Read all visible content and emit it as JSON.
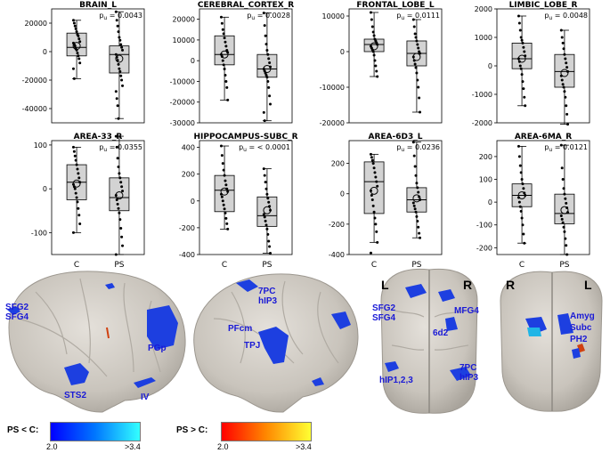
{
  "chart_data": [
    {
      "type": "box",
      "title": "BRAIN_L",
      "pvalue": "0.0043",
      "ylim": [
        -50000,
        30000
      ],
      "ticks": [
        20000,
        0,
        -20000,
        -40000
      ],
      "groups": [
        {
          "name": "C",
          "median": 3000,
          "q1": -3000,
          "q3": 13000,
          "whisker_low": -19000,
          "whisker_high": 22000,
          "mean": 4000,
          "points": [
            22000,
            20000,
            18000,
            16000,
            14000,
            12000,
            11000,
            9000,
            7000,
            6000,
            5000,
            4000,
            2000,
            1000,
            -1000,
            -3000,
            -5000,
            -8000,
            -12000,
            -19000
          ]
        },
        {
          "name": "PS",
          "median": -2000,
          "q1": -15000,
          "q3": 4000,
          "whisker_low": -47000,
          "whisker_high": 28000,
          "mean": -5000,
          "points": [
            28000,
            22000,
            18000,
            14000,
            10000,
            8000,
            5000,
            3000,
            1000,
            -2000,
            -4000,
            -6000,
            -9000,
            -12000,
            -14000,
            -17000,
            -20000,
            -24000,
            -28000,
            -33000,
            -38000,
            -47000
          ]
        }
      ]
    },
    {
      "type": "box",
      "title": "CEREBRAL_CORTEX_R",
      "pvalue": "0.0028",
      "ylim": [
        -30000,
        25000
      ],
      "ticks": [
        20000,
        10000,
        0,
        -10000,
        -20000,
        -30000
      ],
      "groups": [
        {
          "name": "C",
          "median": 3000,
          "q1": -2000,
          "q3": 12000,
          "whisker_low": -19000,
          "whisker_high": 21000,
          "mean": 3000,
          "points": [
            21000,
            18000,
            15000,
            13000,
            11000,
            9000,
            7000,
            5000,
            4000,
            3000,
            2000,
            0,
            -2000,
            -4000,
            -7000,
            -10000,
            -13000,
            -19000
          ]
        },
        {
          "name": "PS",
          "median": -4000,
          "q1": -8000,
          "q3": 3000,
          "whisker_low": -29000,
          "whisker_high": 23000,
          "mean": -4000,
          "points": [
            23000,
            17000,
            12000,
            8000,
            5000,
            3000,
            1000,
            -1000,
            -3000,
            -4000,
            -5000,
            -6000,
            -7000,
            -8000,
            -10000,
            -13000,
            -17000,
            -21000,
            -25000,
            -29000
          ]
        }
      ]
    },
    {
      "type": "box",
      "title": "FRONTAL_LOBE_L",
      "pvalue": "0.0111",
      "ylim": [
        -20000,
        12000
      ],
      "ticks": [
        10000,
        0,
        -10000,
        -20000
      ],
      "groups": [
        {
          "name": "C",
          "median": 2000,
          "q1": 0,
          "q3": 3500,
          "whisker_low": -7000,
          "whisker_high": 11000,
          "mean": 1500,
          "points": [
            11000,
            9000,
            7000,
            5500,
            4500,
            3500,
            3000,
            2500,
            2000,
            1500,
            1000,
            500,
            0,
            -1000,
            -2500,
            -4000,
            -5500,
            -7000
          ]
        },
        {
          "name": "PS",
          "median": -500,
          "q1": -4000,
          "q3": 3000,
          "whisker_low": -17000,
          "whisker_high": 9000,
          "mean": -1500,
          "points": [
            9000,
            7000,
            5000,
            4000,
            3000,
            2000,
            1000,
            0,
            -500,
            -1500,
            -2500,
            -3500,
            -4500,
            -6000,
            -8000,
            -10000,
            -13000,
            -17000
          ]
        }
      ]
    },
    {
      "type": "box",
      "title": "LIMBIC_LOBE_R",
      "pvalue": "0.0048",
      "ylim": [
        -2000,
        2000
      ],
      "ticks": [
        2000,
        1000,
        0,
        -1000,
        -2000
      ],
      "groups": [
        {
          "name": "C",
          "median": 250,
          "q1": -100,
          "q3": 800,
          "whisker_low": -1400,
          "whisker_high": 1750,
          "mean": 250,
          "points": [
            1750,
            1500,
            1250,
            1000,
            900,
            800,
            650,
            500,
            350,
            250,
            150,
            0,
            -100,
            -300,
            -550,
            -800,
            -1100,
            -1400
          ]
        },
        {
          "name": "PS",
          "median": -200,
          "q1": -750,
          "q3": 400,
          "whisker_low": -2050,
          "whisker_high": 1250,
          "mean": -250,
          "points": [
            1250,
            1000,
            800,
            600,
            400,
            250,
            100,
            -50,
            -200,
            -350,
            -500,
            -650,
            -750,
            -900,
            -1100,
            -1400,
            -1700,
            -2050
          ]
        }
      ]
    },
    {
      "type": "box",
      "title": "AREA-33_R",
      "pvalue": "0.0355",
      "ylim": [
        -150,
        110
      ],
      "ticks": [
        100,
        0,
        -100
      ],
      "groups": [
        {
          "name": "C",
          "median": 15,
          "q1": -25,
          "q3": 55,
          "whisker_low": -100,
          "whisker_high": 95,
          "mean": 12,
          "points": [
            95,
            85,
            75,
            65,
            55,
            45,
            35,
            25,
            15,
            10,
            5,
            0,
            -10,
            -20,
            -30,
            -45,
            -60,
            -80,
            -100
          ]
        },
        {
          "name": "PS",
          "median": -20,
          "q1": -50,
          "q3": 25,
          "whisker_low": -150,
          "whisker_high": 120,
          "mean": -15,
          "points": [
            120,
            95,
            70,
            50,
            35,
            25,
            15,
            5,
            -5,
            -15,
            -25,
            -35,
            -45,
            -55,
            -70,
            -90,
            -110,
            -130,
            -150
          ]
        }
      ]
    },
    {
      "type": "box",
      "title": "HIPPOCAMPUS-SUBC_R",
      "pvalue": "< 0.0001",
      "ylim": [
        -400,
        450
      ],
      "ticks": [
        400,
        200,
        0,
        -200,
        -400
      ],
      "groups": [
        {
          "name": "C",
          "median": 80,
          "q1": -80,
          "q3": 190,
          "whisker_low": -210,
          "whisker_high": 410,
          "mean": 70,
          "points": [
            410,
            340,
            280,
            230,
            190,
            150,
            120,
            90,
            70,
            50,
            30,
            0,
            -30,
            -60,
            -90,
            -130,
            -170,
            -210
          ]
        },
        {
          "name": "PS",
          "median": -110,
          "q1": -190,
          "q3": 30,
          "whisker_low": -390,
          "whisker_high": 240,
          "mean": -70,
          "points": [
            240,
            190,
            140,
            90,
            50,
            20,
            -10,
            -40,
            -70,
            -100,
            -120,
            -150,
            -180,
            -210,
            -250,
            -300,
            -340,
            -390
          ]
        }
      ]
    },
    {
      "type": "box",
      "title": "AREA-6D3_L",
      "pvalue": "0.0236",
      "ylim": [
        -400,
        350
      ],
      "ticks": [
        200,
        0,
        -200,
        -400
      ],
      "groups": [
        {
          "name": "C",
          "median": 80,
          "q1": -130,
          "q3": 210,
          "whisker_low": -320,
          "whisker_high": 260,
          "mean": 20,
          "points": [
            260,
            240,
            220,
            200,
            170,
            140,
            110,
            80,
            50,
            20,
            -10,
            -40,
            -80,
            -120,
            -160,
            -200,
            -250,
            -320,
            -390
          ]
        },
        {
          "name": "PS",
          "median": -40,
          "q1": -120,
          "q3": 40,
          "whisker_low": -290,
          "whisker_high": 340,
          "mean": -30,
          "points": [
            340,
            250,
            180,
            120,
            70,
            40,
            10,
            -20,
            -40,
            -60,
            -80,
            -100,
            -120,
            -150,
            -180,
            -220,
            -260,
            -290
          ]
        }
      ]
    },
    {
      "type": "box",
      "title": "AREA-6MA_R",
      "pvalue": "0.0121",
      "ylim": [
        -230,
        270
      ],
      "ticks": [
        200,
        100,
        0,
        -100,
        -200
      ],
      "groups": [
        {
          "name": "C",
          "median": 30,
          "q1": -20,
          "q3": 80,
          "whisker_low": -180,
          "whisker_high": 245,
          "mean": 30,
          "points": [
            245,
            200,
            160,
            130,
            100,
            80,
            60,
            40,
            30,
            20,
            0,
            -20,
            -40,
            -70,
            -100,
            -140,
            -180
          ]
        },
        {
          "name": "PS",
          "median": -50,
          "q1": -95,
          "q3": 35,
          "whisker_low": -230,
          "whisker_high": 250,
          "mean": -35,
          "points": [
            250,
            150,
            100,
            60,
            35,
            15,
            -5,
            -25,
            -45,
            -60,
            -75,
            -90,
            -110,
            -130,
            -160,
            -190,
            -230
          ]
        }
      ]
    }
  ],
  "p_label": "p",
  "p_subscript": "u",
  "group_labels": [
    "C",
    "PS"
  ],
  "brain_labels": {
    "left_lateral": [
      "SFG2",
      "SFG4",
      "PGp",
      "STS2",
      "IV"
    ],
    "right_lateral": [
      "7PC",
      "hIP3",
      "PFcm",
      "TPJ"
    ],
    "top": [
      "SFG2",
      "SFG4",
      "MFG4",
      "6d2",
      "hIP1,2,3",
      "7PC",
      "hIP3"
    ],
    "bottom": [
      "Amyg",
      "Subc",
      "PH2"
    ]
  },
  "hemisphere_labels": {
    "top_left": "L",
    "top_right": "R",
    "bottom_left": "R",
    "bottom_right": "L"
  },
  "legend": {
    "neg_title": "PS < C:",
    "neg_min": "2.0",
    "neg_max": ">3.4",
    "pos_title": "PS > C:",
    "pos_min": "2.0",
    "pos_max": ">3.4"
  },
  "colors": {
    "box_fill": "#d3d3d3",
    "region": "#1a1ad6",
    "neg_low": "#0000ff",
    "neg_high": "#33ffff",
    "pos_low": "#ff0000",
    "pos_high": "#ffff33"
  }
}
